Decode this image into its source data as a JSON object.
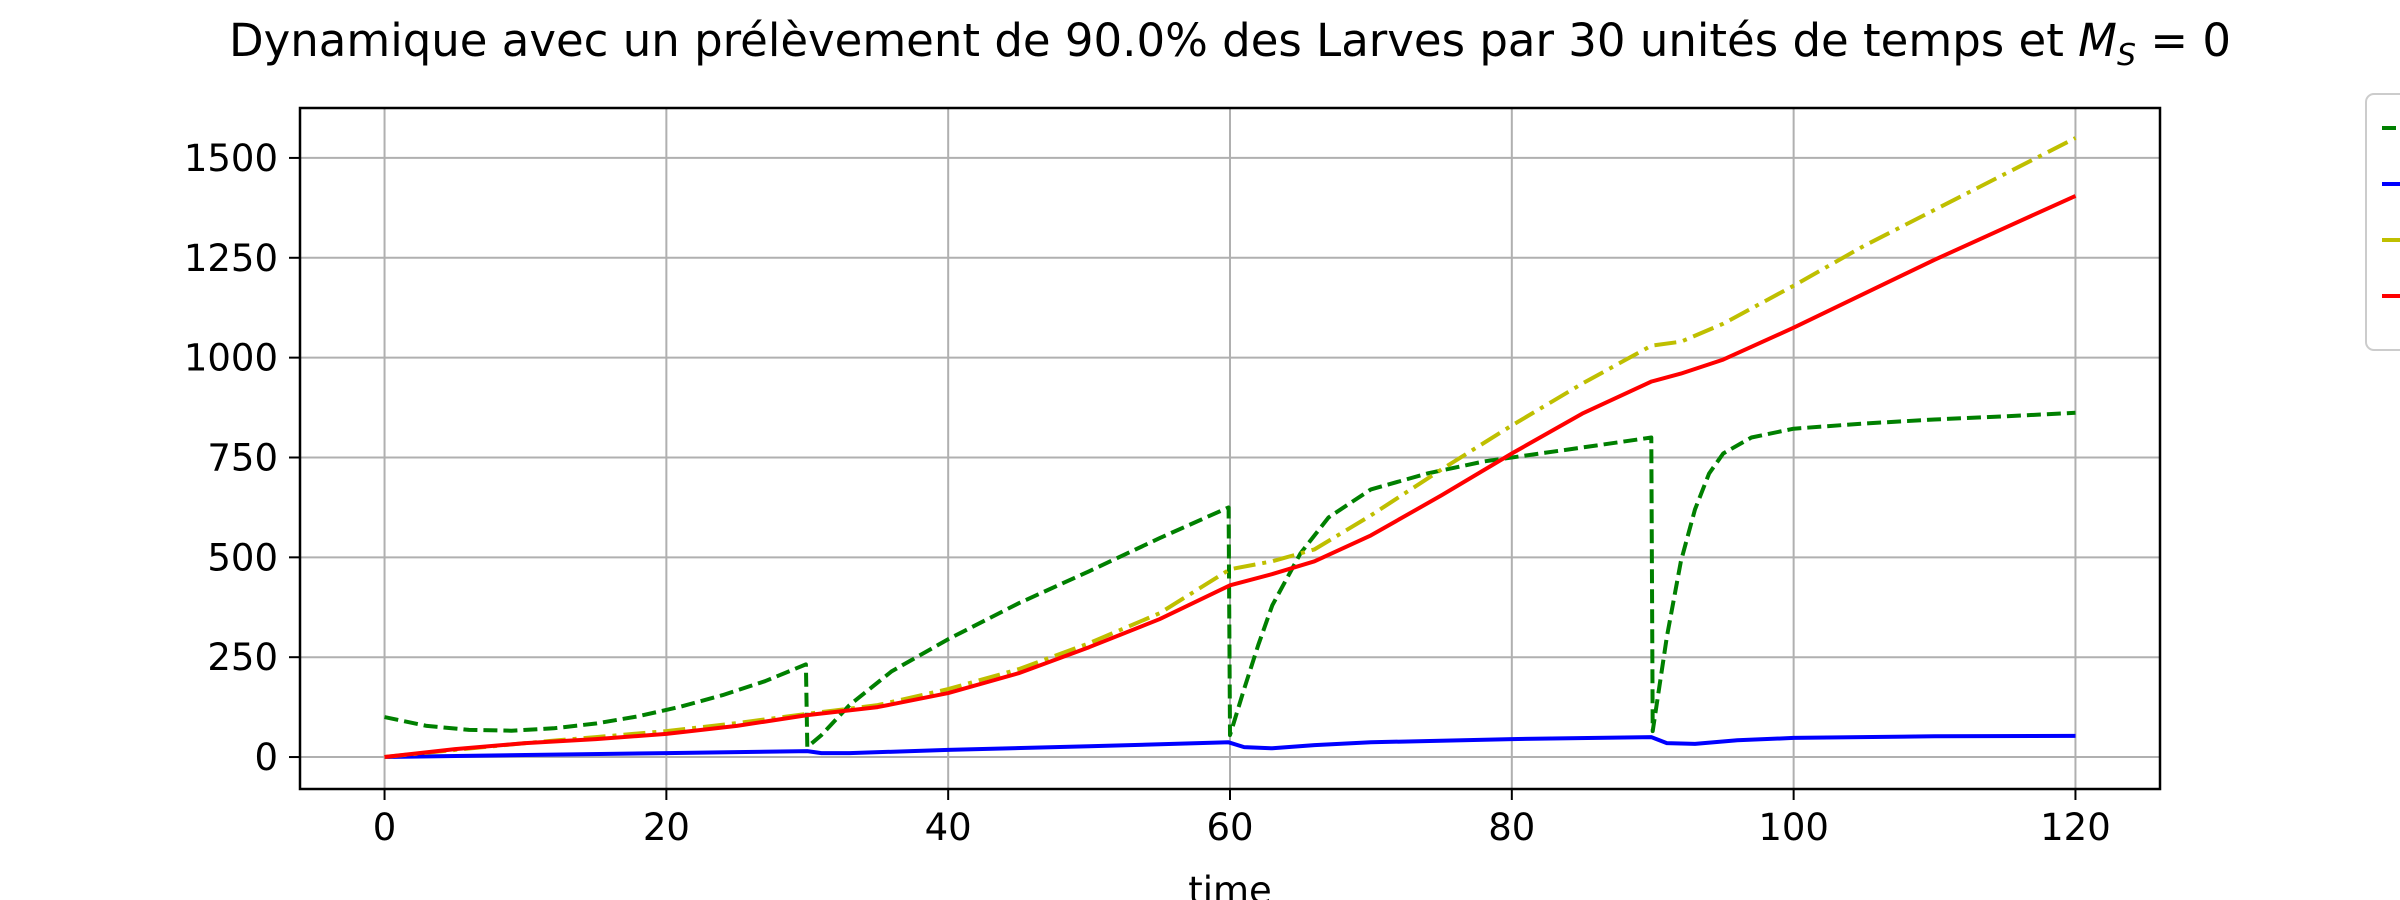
{
  "chart_data": {
    "type": "line",
    "title_main": "Dynamique avec un prélèvement de 90.0% des Larves par 30 unités de temps et ",
    "title_math_symbol": "M",
    "title_math_subscript": "S",
    "title_tail": " = 0",
    "xlabel": "time",
    "ylabel": "",
    "xlim": [
      -6,
      126
    ],
    "ylim": [
      -80,
      1625
    ],
    "xticks": [
      0,
      20,
      40,
      60,
      80,
      100,
      120
    ],
    "yticks": [
      0,
      250,
      500,
      750,
      1000,
      1250,
      1500
    ],
    "grid": true,
    "legend_position": "outside-right (cropped, entries not readable)",
    "series": [
      {
        "color": "#008000",
        "style": "dashed",
        "points": [
          [
            0,
            100
          ],
          [
            3,
            78
          ],
          [
            6,
            68
          ],
          [
            9,
            66
          ],
          [
            12,
            72
          ],
          [
            15,
            84
          ],
          [
            18,
            102
          ],
          [
            21,
            126
          ],
          [
            24,
            155
          ],
          [
            27,
            190
          ],
          [
            29.9,
            232
          ],
          [
            30,
            25
          ],
          [
            31,
            55
          ],
          [
            33,
            130
          ],
          [
            36,
            215
          ],
          [
            40,
            295
          ],
          [
            45,
            385
          ],
          [
            50,
            465
          ],
          [
            55,
            548
          ],
          [
            59.9,
            625
          ],
          [
            60,
            55
          ],
          [
            61,
            170
          ],
          [
            62,
            280
          ],
          [
            63,
            380
          ],
          [
            65,
            510
          ],
          [
            67,
            600
          ],
          [
            70,
            670
          ],
          [
            74,
            710
          ],
          [
            78,
            740
          ],
          [
            82,
            760
          ],
          [
            86,
            780
          ],
          [
            89.9,
            800
          ],
          [
            90,
            65
          ],
          [
            91,
            300
          ],
          [
            92,
            490
          ],
          [
            93,
            620
          ],
          [
            94,
            710
          ],
          [
            95,
            760
          ],
          [
            97,
            800
          ],
          [
            100,
            822
          ],
          [
            105,
            835
          ],
          [
            110,
            845
          ],
          [
            115,
            853
          ],
          [
            120,
            862
          ]
        ]
      },
      {
        "color": "#0000ff",
        "style": "solid",
        "points": [
          [
            0,
            0
          ],
          [
            10,
            5
          ],
          [
            20,
            10
          ],
          [
            30,
            15
          ],
          [
            31,
            10
          ],
          [
            33,
            10
          ],
          [
            40,
            18
          ],
          [
            50,
            27
          ],
          [
            59.9,
            37
          ],
          [
            61,
            25
          ],
          [
            63,
            22
          ],
          [
            66,
            30
          ],
          [
            70,
            37
          ],
          [
            80,
            45
          ],
          [
            89.9,
            50
          ],
          [
            91,
            35
          ],
          [
            93,
            33
          ],
          [
            96,
            42
          ],
          [
            100,
            48
          ],
          [
            110,
            52
          ],
          [
            120,
            53
          ]
        ]
      },
      {
        "color": "#bfbf00",
        "style": "dashdot",
        "points": [
          [
            0,
            0
          ],
          [
            5,
            18
          ],
          [
            10,
            35
          ],
          [
            15,
            50
          ],
          [
            20,
            65
          ],
          [
            25,
            85
          ],
          [
            30,
            108
          ],
          [
            35,
            130
          ],
          [
            40,
            170
          ],
          [
            45,
            220
          ],
          [
            50,
            285
          ],
          [
            55,
            360
          ],
          [
            60,
            470
          ],
          [
            63,
            490
          ],
          [
            66,
            520
          ],
          [
            70,
            605
          ],
          [
            75,
            720
          ],
          [
            80,
            830
          ],
          [
            85,
            935
          ],
          [
            89.9,
            1030
          ],
          [
            92,
            1040
          ],
          [
            95,
            1085
          ],
          [
            100,
            1180
          ],
          [
            105,
            1280
          ],
          [
            110,
            1370
          ],
          [
            115,
            1460
          ],
          [
            120,
            1550
          ]
        ]
      },
      {
        "color": "#ff0000",
        "style": "solid",
        "points": [
          [
            0,
            0
          ],
          [
            5,
            20
          ],
          [
            10,
            35
          ],
          [
            15,
            45
          ],
          [
            20,
            58
          ],
          [
            25,
            78
          ],
          [
            30,
            105
          ],
          [
            35,
            125
          ],
          [
            40,
            160
          ],
          [
            45,
            210
          ],
          [
            50,
            275
          ],
          [
            55,
            345
          ],
          [
            60,
            430
          ],
          [
            63,
            458
          ],
          [
            66,
            490
          ],
          [
            70,
            555
          ],
          [
            75,
            655
          ],
          [
            80,
            760
          ],
          [
            85,
            860
          ],
          [
            89.9,
            940
          ],
          [
            92,
            960
          ],
          [
            95,
            995
          ],
          [
            100,
            1075
          ],
          [
            105,
            1160
          ],
          [
            110,
            1245
          ],
          [
            115,
            1325
          ],
          [
            120,
            1405
          ]
        ]
      }
    ]
  }
}
